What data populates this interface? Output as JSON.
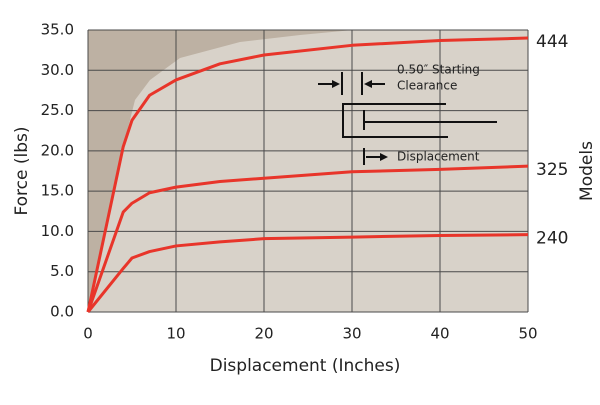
{
  "chart_data": {
    "type": "line",
    "y_label": "Force (lbs)",
    "x_label": "Displacement (Inches)",
    "y2_label": "Models",
    "annotations": [
      "0.50″ Starting",
      "Clearance",
      "Displacement"
    ],
    "x": [
      0,
      4,
      5,
      7,
      10,
      15,
      20,
      30,
      40,
      50
    ],
    "series": [
      {
        "name": "444",
        "color": "#e8352a",
        "values": [
          0,
          20.5,
          23.8,
          26.9,
          28.8,
          30.8,
          31.9,
          33.1,
          33.7,
          34.0
        ]
      },
      {
        "name": "325",
        "color": "#e8352a",
        "values": [
          0,
          12.4,
          13.5,
          14.8,
          15.5,
          16.2,
          16.6,
          17.4,
          17.7,
          18.1
        ]
      },
      {
        "name": "240",
        "color": "#e8352a",
        "values": [
          0,
          5.4,
          6.7,
          7.5,
          8.2,
          8.7,
          9.1,
          9.3,
          9.5,
          9.6
        ]
      }
    ],
    "xlim": [
      0,
      50
    ],
    "xticks": [
      0,
      10,
      20,
      30,
      40,
      50
    ],
    "ylim": [
      0,
      35
    ],
    "yticks": [
      {
        "value": 0,
        "label": "0.0"
      },
      {
        "value": 5,
        "label": "5.0"
      },
      {
        "value": 10,
        "label": "10.0"
      },
      {
        "value": 15,
        "label": "15.0"
      },
      {
        "value": 20,
        "label": "20.0"
      },
      {
        "value": 25,
        "label": "25.0"
      },
      {
        "value": 30,
        "label": "30.0"
      },
      {
        "value": 35,
        "label": "35.0"
      }
    ],
    "grid": true
  }
}
